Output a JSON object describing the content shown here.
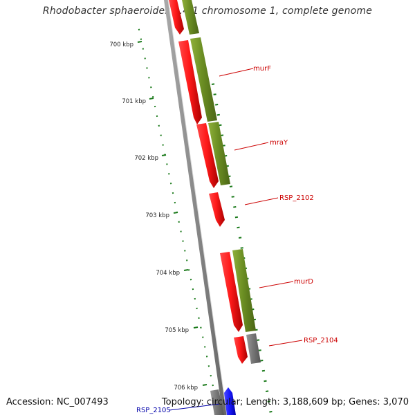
{
  "title": "Rhodobacter sphaeroides 2.4.1 chromosome 1, complete genome",
  "footer": {
    "accession": "Accession: NC_007493",
    "summary": "Topology: circular; Length: 3,188,609 bp; Genes: 3,070"
  },
  "ruler": {
    "ticks": [
      "700 kbp",
      "701 kbp",
      "702 kbp",
      "703 kbp",
      "704 kbp",
      "705 kbp",
      "706 kbp"
    ]
  },
  "genes": [
    {
      "label": "murF",
      "color": "#cc0000"
    },
    {
      "label": "mraY",
      "color": "#cc0000"
    },
    {
      "label": "RSP_2102",
      "color": "#cc0000"
    },
    {
      "label": "murD",
      "color": "#cc0000"
    },
    {
      "label": "RSP_2104",
      "color": "#cc0000"
    },
    {
      "label": "RSP_2105",
      "color": "#0000aa"
    }
  ],
  "colors": {
    "forward_gene": "#ee1111",
    "reverse_feature": "#6b8e23",
    "unknown_feature": "#777777",
    "selected_gene": "#1a1aff",
    "backbone": "#888888",
    "tick": "#1a7a1a"
  }
}
